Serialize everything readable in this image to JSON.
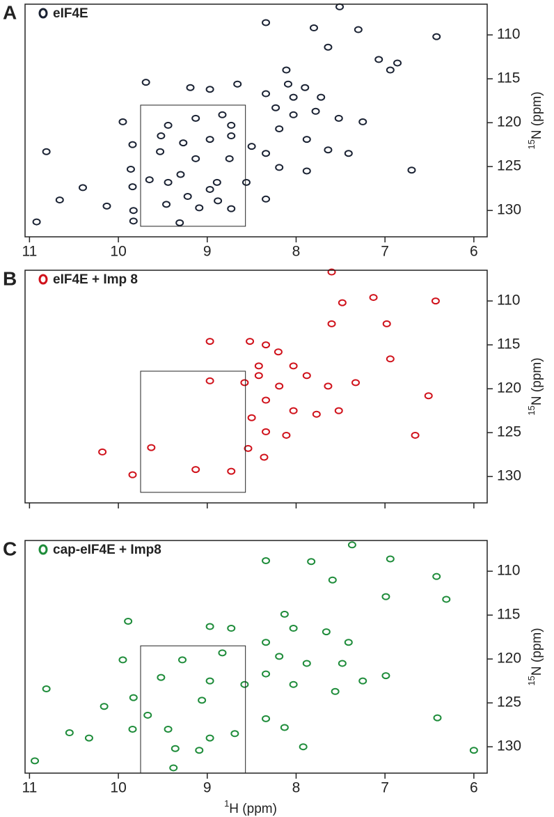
{
  "chart_data": [
    {
      "type": "scatter",
      "panel": "A",
      "color": "#1a2233",
      "y_label_isotope": "15",
      "y_label": "N (ppm)",
      "xlim": [
        11.05,
        5.85
      ],
      "xticks": [
        11,
        10,
        9,
        8,
        7,
        6
      ],
      "x_tick_labels": true,
      "ylim": [
        106.5,
        133
      ],
      "yticks": [
        110,
        115,
        120,
        125,
        130
      ],
      "box": {
        "x": [
          9.75,
          8.57
        ],
        "y": [
          118,
          131.8
        ]
      },
      "series": [
        {
          "name": "eIF4E",
          "color": "#1a2233",
          "x": [
            7.51,
            8.34,
            7.8,
            7.3,
            6.42,
            7.64,
            7.07,
            6.86,
            8.11,
            8.09,
            7.9,
            9.69,
            9.19,
            8.97,
            8.66,
            8.34,
            8.23,
            8.03,
            7.78,
            7.52,
            7.25,
            8.83,
            9.13,
            9.95,
            9.52,
            9.27,
            8.97,
            8.73,
            8.5,
            8.19,
            7.88,
            7.64,
            7.41,
            8.34,
            9.84,
            10.81,
            9.53,
            9.13,
            8.75,
            8.19,
            7.88,
            6.7,
            9.86,
            9.65,
            9.44,
            9.3,
            8.89,
            8.56,
            10.4,
            9.84,
            8.97,
            10.66,
            10.13,
            9.83,
            9.46,
            9.22,
            9.09,
            8.88,
            8.73,
            9.31,
            10.92,
            9.83,
            8.34,
            8.73,
            9.44,
            8.03,
            7.72,
            6.94
          ],
          "values": [
            106.8,
            108.6,
            109.2,
            109.4,
            110.2,
            111.4,
            112.8,
            113.2,
            114.0,
            115.6,
            116.0,
            115.4,
            116.0,
            116.2,
            115.6,
            116.7,
            118.3,
            119.1,
            118.7,
            119.5,
            119.9,
            119.1,
            119.5,
            119.9,
            121.5,
            122.3,
            121.9,
            121.5,
            122.7,
            120.7,
            121.9,
            123.1,
            123.5,
            123.5,
            122.5,
            123.3,
            123.3,
            124.1,
            124.1,
            125.1,
            125.5,
            125.4,
            125.3,
            126.5,
            126.8,
            125.9,
            126.8,
            126.8,
            127.4,
            127.3,
            127.6,
            128.8,
            129.5,
            130.0,
            129.3,
            128.4,
            129.7,
            128.9,
            129.8,
            131.4,
            131.3,
            131.2,
            128.7,
            120.3,
            120.3,
            117.1,
            117.1,
            114.0
          ]
        }
      ]
    },
    {
      "type": "scatter",
      "panel": "B",
      "color": "#d0121b",
      "y_label_isotope": "15",
      "y_label": "N (ppm)",
      "xlim": [
        11.05,
        5.85
      ],
      "xticks": [
        11,
        10,
        9,
        8,
        7,
        6
      ],
      "x_tick_labels": false,
      "ylim": [
        106.5,
        133
      ],
      "yticks": [
        110,
        115,
        120,
        125,
        130
      ],
      "box": {
        "x": [
          9.75,
          8.57
        ],
        "y": [
          118,
          131.8
        ]
      },
      "series": [
        {
          "name": "eIF4E + Imp 8",
          "color": "#d0121b",
          "x": [
            7.6,
            7.48,
            7.13,
            6.43,
            7.6,
            6.98,
            8.34,
            8.2,
            8.52,
            8.97,
            8.03,
            8.42,
            8.58,
            8.42,
            8.19,
            7.88,
            7.64,
            7.33,
            8.34,
            8.03,
            7.77,
            7.52,
            8.5,
            8.34,
            8.11,
            8.54,
            8.36,
            10.18,
            9.84,
            9.63,
            9.13,
            8.73,
            6.51,
            6.66,
            8.97,
            6.94
          ],
          "values": [
            106.7,
            110.2,
            109.6,
            110.0,
            112.6,
            112.6,
            115.0,
            115.8,
            114.6,
            114.6,
            117.4,
            117.4,
            119.3,
            118.5,
            119.7,
            118.5,
            119.7,
            119.3,
            121.3,
            122.5,
            122.9,
            122.5,
            123.3,
            124.9,
            125.3,
            126.8,
            127.8,
            127.2,
            129.8,
            126.7,
            129.2,
            129.4,
            120.8,
            125.3,
            119.1,
            116.6
          ]
        }
      ]
    },
    {
      "type": "scatter",
      "panel": "C",
      "color": "#1e8c3a",
      "y_label_isotope": "15",
      "y_label": "N (ppm)",
      "x_label_isotope": "1",
      "x_label": "H (ppm)",
      "xlim": [
        11.05,
        5.85
      ],
      "xticks": [
        11,
        10,
        9,
        8,
        7,
        6
      ],
      "x_tick_labels": true,
      "ylim": [
        106.5,
        133
      ],
      "yticks": [
        110,
        115,
        120,
        125,
        130
      ],
      "box": {
        "x": [
          9.75,
          8.57
        ],
        "y": [
          118.5,
          133
        ]
      },
      "series": [
        {
          "name": "cap-eIF4E + Imp8",
          "color": "#1e8c3a",
          "x": [
            7.37,
            8.34,
            7.83,
            6.94,
            6.42,
            7.59,
            6.99,
            6.31,
            8.13,
            8.03,
            7.66,
            9.89,
            8.97,
            8.73,
            8.34,
            7.41,
            8.83,
            9.28,
            9.95,
            8.19,
            7.88,
            7.48,
            9.52,
            8.97,
            8.58,
            8.34,
            8.03,
            7.56,
            7.25,
            6.99,
            10.81,
            9.83,
            9.06,
            8.34,
            8.13,
            6.41,
            10.16,
            9.67,
            9.44,
            10.55,
            10.33,
            9.84,
            8.97,
            8.69,
            9.36,
            10.94,
            9.38,
            9.09,
            7.92,
            6.0
          ],
          "values": [
            107.0,
            108.8,
            108.9,
            108.6,
            110.6,
            111.0,
            112.9,
            113.2,
            114.9,
            116.5,
            116.9,
            115.7,
            116.3,
            116.5,
            118.1,
            118.1,
            119.3,
            120.1,
            120.1,
            119.7,
            120.5,
            120.5,
            122.1,
            122.5,
            122.9,
            121.7,
            122.9,
            123.7,
            122.5,
            121.9,
            123.4,
            124.4,
            124.7,
            126.8,
            127.8,
            126.7,
            125.4,
            126.4,
            128.0,
            128.4,
            129.0,
            128.0,
            129.0,
            128.5,
            130.2,
            131.6,
            132.4,
            130.4,
            130.0,
            130.4
          ]
        }
      ]
    }
  ]
}
